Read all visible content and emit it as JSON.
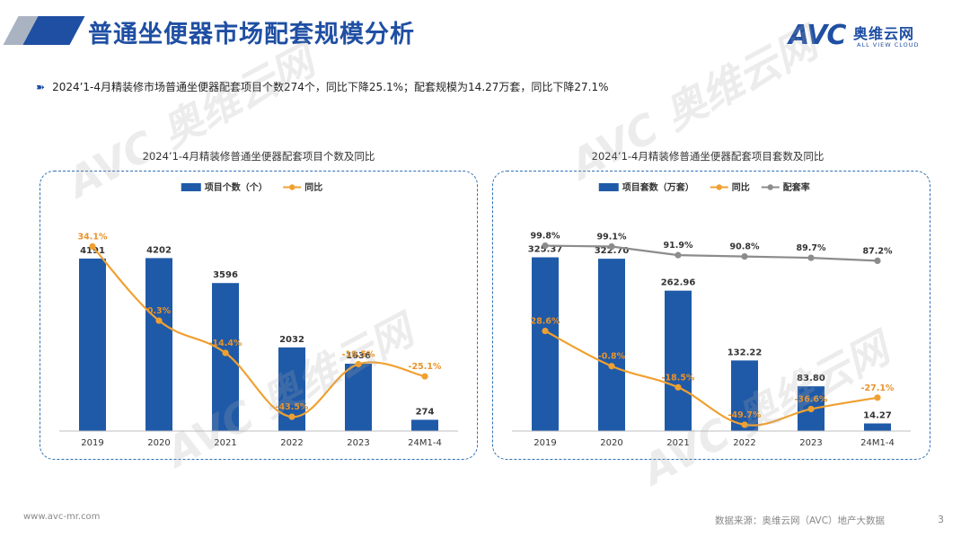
{
  "header": {
    "title": "普通坐便器市场配套规模分析",
    "logo_main": "AVC",
    "logo_cn": "奥维云网",
    "logo_en": "ALL VIEW CLOUD"
  },
  "summary": {
    "bullet_icon": "arrow-right-icon",
    "text": "2024’1-4月精装修市场普通坐便器配套项目个数274个，同比下降25.1%；配套规模为14.27万套，同比下降27.1%"
  },
  "footer": {
    "website": "www.avc-mr.com",
    "source": "数据来源：奥维云网（AVC）地产大数据",
    "page": "3"
  },
  "watermarks": [
    {
      "text": "AVC 奥维云网"
    },
    {
      "text": "AVC 奥维云网"
    },
    {
      "text": "AVC 奥维云网"
    },
    {
      "text": "AVC 奥维云网"
    }
  ],
  "colors": {
    "bar": "#1f5aa8",
    "yoy": "#f0a030",
    "ratio": "#8c8c8c",
    "title": "#1f4fa3"
  },
  "chart_data": [
    {
      "type": "bar",
      "title": "2024’1-4月精装修普通坐便器配套项目个数及同比",
      "categories": [
        "2019",
        "2020",
        "2021",
        "2022",
        "2023",
        "24M1-4"
      ],
      "series": [
        {
          "name": "项目个数（个）",
          "kind": "bar",
          "values": [
            4191,
            4202,
            3596,
            2032,
            1636,
            274
          ],
          "labels": [
            "4191",
            "4202",
            "3596",
            "2032",
            "1636",
            "274"
          ]
        },
        {
          "name": "同比",
          "kind": "line",
          "values": [
            34.1,
            0.3,
            -14.4,
            -43.5,
            -19.5,
            -25.1
          ],
          "labels": [
            "34.1%",
            "0.3%",
            "-14.4%",
            "-43.5%",
            "-19.5%",
            "-25.1%"
          ]
        }
      ],
      "ylim": [
        0,
        4800
      ],
      "y2lim": [
        -50,
        40
      ],
      "legend": "top"
    },
    {
      "type": "bar",
      "title": "2024’1-4月精装修普通坐便器配套项目套数及同比",
      "categories": [
        "2019",
        "2020",
        "2021",
        "2022",
        "2023",
        "24M1-4"
      ],
      "series": [
        {
          "name": "项目套数（万套）",
          "kind": "bar",
          "values": [
            325.37,
            322.7,
            262.96,
            132.22,
            83.8,
            14.27
          ],
          "labels": [
            "325.37",
            "322.70",
            "262.96",
            "132.22",
            "83.80",
            "14.27"
          ]
        },
        {
          "name": "同比",
          "kind": "line",
          "values": [
            28.6,
            -0.8,
            -18.5,
            -49.7,
            -36.6,
            -27.1
          ],
          "labels": [
            "28.6%",
            "-0.8%",
            "-18.5%",
            "-49.7%",
            "-36.6%",
            "-27.1%"
          ]
        },
        {
          "name": "配套率",
          "kind": "line",
          "values": [
            99.8,
            99.1,
            91.9,
            90.8,
            89.7,
            87.2
          ],
          "labels": [
            "99.8%",
            "99.1%",
            "91.9%",
            "90.8%",
            "89.7%",
            "87.2%"
          ]
        }
      ],
      "ylim": [
        0,
        370
      ],
      "y2lim": [
        -55,
        110
      ],
      "legend": "top"
    }
  ]
}
